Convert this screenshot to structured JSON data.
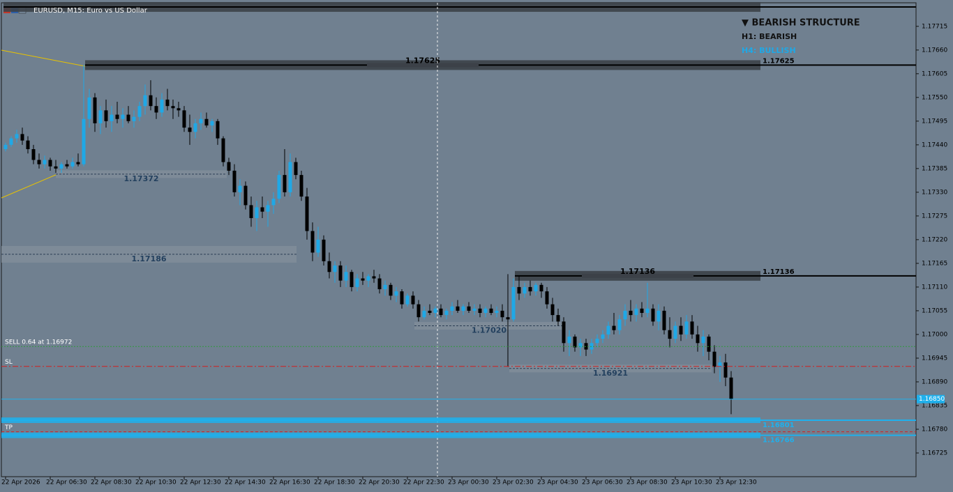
{
  "chart_data": {
    "type": "candlestick",
    "title": "EURUSD, M15:  Euro vs US Dollar",
    "up_color": "#1fa8e6",
    "down_color": "#000000",
    "candles": [
      [
        1.1743,
        1.17445,
        1.17425,
        1.1744
      ],
      [
        1.1744,
        1.1746,
        1.17435,
        1.17455
      ],
      [
        1.17455,
        1.17475,
        1.17445,
        1.17465
      ],
      [
        1.17465,
        1.1748,
        1.1744,
        1.1745
      ],
      [
        1.1745,
        1.1746,
        1.1742,
        1.1743
      ],
      [
        1.1743,
        1.1744,
        1.17395,
        1.17405
      ],
      [
        1.17405,
        1.1742,
        1.17385,
        1.17395
      ],
      [
        1.17395,
        1.17415,
        1.17385,
        1.17405
      ],
      [
        1.17405,
        1.1741,
        1.1738,
        1.1739
      ],
      [
        1.1739,
        1.17405,
        1.17375,
        1.17385
      ],
      [
        1.17385,
        1.174,
        1.17375,
        1.17395
      ],
      [
        1.17395,
        1.17405,
        1.17385,
        1.1739
      ],
      [
        1.1739,
        1.1741,
        1.17385,
        1.174
      ],
      [
        1.174,
        1.1742,
        1.1739,
        1.17395
      ],
      [
        1.17395,
        1.17625,
        1.1739,
        1.175
      ],
      [
        1.175,
        1.1757,
        1.1748,
        1.1755
      ],
      [
        1.1755,
        1.1756,
        1.1747,
        1.1749
      ],
      [
        1.1749,
        1.1753,
        1.17465,
        1.1752
      ],
      [
        1.1752,
        1.17545,
        1.1748,
        1.17495
      ],
      [
        1.17495,
        1.1753,
        1.1747,
        1.1751
      ],
      [
        1.1751,
        1.1754,
        1.1749,
        1.175
      ],
      [
        1.175,
        1.17525,
        1.1748,
        1.1751
      ],
      [
        1.1751,
        1.1753,
        1.1749,
        1.17495
      ],
      [
        1.17495,
        1.1752,
        1.1748,
        1.17505
      ],
      [
        1.17505,
        1.1754,
        1.17495,
        1.1753
      ],
      [
        1.1753,
        1.1758,
        1.1751,
        1.17555
      ],
      [
        1.17555,
        1.1759,
        1.1752,
        1.1753
      ],
      [
        1.1753,
        1.1755,
        1.175,
        1.17515
      ],
      [
        1.17515,
        1.1756,
        1.17505,
        1.17545
      ],
      [
        1.17545,
        1.1757,
        1.1752,
        1.1753
      ],
      [
        1.1753,
        1.17545,
        1.175,
        1.17525
      ],
      [
        1.17525,
        1.1754,
        1.17505,
        1.1752
      ],
      [
        1.1752,
        1.1753,
        1.1747,
        1.1748
      ],
      [
        1.1748,
        1.1751,
        1.1744,
        1.1747
      ],
      [
        1.1747,
        1.175,
        1.17455,
        1.1749
      ],
      [
        1.1749,
        1.17515,
        1.17475,
        1.175
      ],
      [
        1.175,
        1.17515,
        1.1748,
        1.17485
      ],
      [
        1.17485,
        1.175,
        1.1747,
        1.17495
      ],
      [
        1.17495,
        1.175,
        1.1744,
        1.17455
      ],
      [
        1.17455,
        1.1746,
        1.1739,
        1.174
      ],
      [
        1.174,
        1.1741,
        1.1737,
        1.1738
      ],
      [
        1.1738,
        1.17395,
        1.1732,
        1.1733
      ],
      [
        1.1733,
        1.1736,
        1.173,
        1.17345
      ],
      [
        1.17345,
        1.17355,
        1.1729,
        1.173
      ],
      [
        1.173,
        1.1732,
        1.1725,
        1.1727
      ],
      [
        1.1727,
        1.1731,
        1.1724,
        1.17295
      ],
      [
        1.17295,
        1.1732,
        1.1727,
        1.17285
      ],
      [
        1.17285,
        1.1731,
        1.1725,
        1.173
      ],
      [
        1.173,
        1.1733,
        1.1728,
        1.17315
      ],
      [
        1.17315,
        1.1738,
        1.17305,
        1.1737
      ],
      [
        1.1737,
        1.1743,
        1.1732,
        1.1733
      ],
      [
        1.1733,
        1.1742,
        1.1732,
        1.174
      ],
      [
        1.174,
        1.1741,
        1.1736,
        1.1737
      ],
      [
        1.1737,
        1.1738,
        1.1731,
        1.1732
      ],
      [
        1.1732,
        1.1734,
        1.1722,
        1.1724
      ],
      [
        1.1724,
        1.1726,
        1.1717,
        1.1719
      ],
      [
        1.1719,
        1.1725,
        1.1718,
        1.1722
      ],
      [
        1.1722,
        1.1723,
        1.1716,
        1.1717
      ],
      [
        1.1717,
        1.1719,
        1.1713,
        1.17145
      ],
      [
        1.17145,
        1.1717,
        1.1712,
        1.1716
      ],
      [
        1.1716,
        1.1717,
        1.1711,
        1.17125
      ],
      [
        1.17125,
        1.1716,
        1.1711,
        1.17145
      ],
      [
        1.17145,
        1.1715,
        1.171,
        1.1711
      ],
      [
        1.1711,
        1.1714,
        1.171,
        1.1713
      ],
      [
        1.1713,
        1.17145,
        1.17115,
        1.17125
      ],
      [
        1.17125,
        1.1714,
        1.1711,
        1.17135
      ],
      [
        1.17135,
        1.1715,
        1.1712,
        1.1713
      ],
      [
        1.1713,
        1.1714,
        1.17095,
        1.17105
      ],
      [
        1.17105,
        1.17125,
        1.1709,
        1.17115
      ],
      [
        1.17115,
        1.1712,
        1.1708,
        1.1709
      ],
      [
        1.1709,
        1.1711,
        1.17075,
        1.171
      ],
      [
        1.171,
        1.17105,
        1.1706,
        1.1707
      ],
      [
        1.1707,
        1.17095,
        1.17065,
        1.1709
      ],
      [
        1.1709,
        1.171,
        1.1706,
        1.1707
      ],
      [
        1.1707,
        1.1708,
        1.1703,
        1.1704
      ],
      [
        1.1704,
        1.17065,
        1.17035,
        1.17055
      ],
      [
        1.17055,
        1.1707,
        1.17045,
        1.1705
      ],
      [
        1.1705,
        1.17065,
        1.1704,
        1.1706
      ],
      [
        1.1706,
        1.1707,
        1.1704,
        1.17045
      ],
      [
        1.17045,
        1.1706,
        1.17035,
        1.17055
      ],
      [
        1.17055,
        1.17075,
        1.17045,
        1.17065
      ],
      [
        1.17065,
        1.1708,
        1.1705,
        1.17055
      ],
      [
        1.17055,
        1.1707,
        1.17045,
        1.17065
      ],
      [
        1.17065,
        1.17075,
        1.1705,
        1.17055
      ],
      [
        1.17055,
        1.1707,
        1.17045,
        1.1706
      ],
      [
        1.1706,
        1.1707,
        1.1704,
        1.1705
      ],
      [
        1.1705,
        1.17065,
        1.1704,
        1.1706
      ],
      [
        1.1706,
        1.1707,
        1.17045,
        1.1705
      ],
      [
        1.1705,
        1.17065,
        1.1704,
        1.17055
      ],
      [
        1.17055,
        1.1707,
        1.1703,
        1.1704
      ],
      [
        1.1704,
        1.1714,
        1.16925,
        1.17035
      ],
      [
        1.17035,
        1.1713,
        1.1703,
        1.1711
      ],
      [
        1.1711,
        1.17135,
        1.1708,
        1.17095
      ],
      [
        1.17095,
        1.1712,
        1.17085,
        1.1711
      ],
      [
        1.1711,
        1.17125,
        1.1709,
        1.171
      ],
      [
        1.171,
        1.1712,
        1.1709,
        1.17115
      ],
      [
        1.17115,
        1.1712,
        1.17085,
        1.171
      ],
      [
        1.171,
        1.1711,
        1.1706,
        1.1707
      ],
      [
        1.1707,
        1.17085,
        1.1703,
        1.17045
      ],
      [
        1.17045,
        1.1706,
        1.1702,
        1.1703
      ],
      [
        1.1703,
        1.1704,
        1.1696,
        1.1698
      ],
      [
        1.1698,
        1.1701,
        1.1695,
        1.16995
      ],
      [
        1.16995,
        1.17,
        1.1696,
        1.1697
      ],
      [
        1.1697,
        1.1699,
        1.1695,
        1.1698
      ],
      [
        1.1698,
        1.1699,
        1.1695,
        1.16965
      ],
      [
        1.16965,
        1.1699,
        1.16955,
        1.1698
      ],
      [
        1.1698,
        1.17,
        1.1697,
        1.1699
      ],
      [
        1.1699,
        1.1701,
        1.1698,
        1.17
      ],
      [
        1.17,
        1.1703,
        1.1699,
        1.1702
      ],
      [
        1.1702,
        1.1705,
        1.17,
        1.1701
      ],
      [
        1.1701,
        1.17045,
        1.17,
        1.17035
      ],
      [
        1.17035,
        1.1707,
        1.1702,
        1.17055
      ],
      [
        1.17055,
        1.1708,
        1.1703,
        1.17045
      ],
      [
        1.17045,
        1.1707,
        1.1703,
        1.1706
      ],
      [
        1.1706,
        1.17075,
        1.1704,
        1.1705
      ],
      [
        1.1705,
        1.1712,
        1.1704,
        1.1706
      ],
      [
        1.1706,
        1.1707,
        1.1702,
        1.1703
      ],
      [
        1.1703,
        1.1707,
        1.1701,
        1.17055
      ],
      [
        1.17055,
        1.17065,
        1.17,
        1.1701
      ],
      [
        1.1701,
        1.1704,
        1.1697,
        1.1699
      ],
      [
        1.1699,
        1.1703,
        1.1698,
        1.1702
      ],
      [
        1.1702,
        1.1704,
        1.16985,
        1.17
      ],
      [
        1.17,
        1.17045,
        1.1699,
        1.1703
      ],
      [
        1.1703,
        1.17045,
        1.1699,
        1.17
      ],
      [
        1.17,
        1.1702,
        1.1696,
        1.1698
      ],
      [
        1.1698,
        1.1701,
        1.1695,
        1.16995
      ],
      [
        1.16995,
        1.17,
        1.1694,
        1.1696
      ],
      [
        1.1696,
        1.16975,
        1.1691,
        1.16925
      ],
      [
        1.16925,
        1.1695,
        1.1689,
        1.16935
      ],
      [
        1.16935,
        1.16955,
        1.1688,
        1.169
      ],
      [
        1.169,
        1.16915,
        1.16815,
        1.1685
      ]
    ],
    "categories": [
      "22 Apr 2026",
      "22 Apr 06:30",
      "22 Apr 08:30",
      "22 Apr 10:30",
      "22 Apr 12:30",
      "22 Apr 14:30",
      "22 Apr 16:30",
      "22 Apr 18:30",
      "22 Apr 20:30",
      "22 Apr 22:30",
      "23 Apr 00:30",
      "23 Apr 02:30",
      "23 Apr 04:30",
      "23 Apr 06:30",
      "23 Apr 08:30",
      "23 Apr 10:30",
      "23 Apr 12:30"
    ],
    "ylim": [
      1.1667,
      1.17768
    ],
    "yticks": [
      1.17715,
      {
        "value": 1.1766,
        "label": "1.17660"
      },
      1.17605,
      {
        "value": 1.1755,
        "label": "1.17550"
      },
      1.17495,
      {
        "value": 1.1744,
        "label": "1.17440"
      },
      1.17385,
      {
        "value": 1.1733,
        "label": "1.17330"
      },
      1.17275,
      {
        "value": 1.1722,
        "label": "1.17220"
      },
      1.17165,
      {
        "value": 1.1711,
        "label": "1.17110"
      },
      1.17055,
      {
        "value": 1.17,
        "label": "1.17000"
      },
      1.16945,
      {
        "value": 1.1689,
        "label": "1.16890"
      },
      1.16835,
      {
        "value": 1.1678,
        "label": "1.16780"
      },
      1.16725
    ],
    "resistance_zones": [
      {
        "value": 1.1776
      },
      {
        "value": 1.17625,
        "label": "1.17625"
      },
      {
        "value": 1.17136,
        "label": "1.17136"
      }
    ],
    "support_zones": [
      {
        "value": 1.17372,
        "label": "1.17372"
      },
      {
        "value": 1.17186,
        "label": "1.17186"
      },
      {
        "value": 1.1702,
        "label": "1.17020"
      },
      {
        "value": 1.16921,
        "label": "1.16921"
      }
    ],
    "targets": [
      {
        "value": 1.16801,
        "label": "1.16801"
      },
      {
        "value": 1.16766,
        "label": "1.16766"
      }
    ],
    "sell": {
      "value": 1.16972,
      "label": "SELL 0.64 at 1.16972"
    },
    "sl": {
      "value": 1.16926,
      "label": "SL"
    },
    "tp": {
      "value": 1.16774,
      "label": "TP"
    },
    "bid": {
      "value": 1.1685,
      "label": "1.16850"
    },
    "structure": {
      "title": "▼ BEARISH STRUCTURE",
      "h1": "H1: BEARISH",
      "h4": "H4: BULLISH"
    }
  }
}
